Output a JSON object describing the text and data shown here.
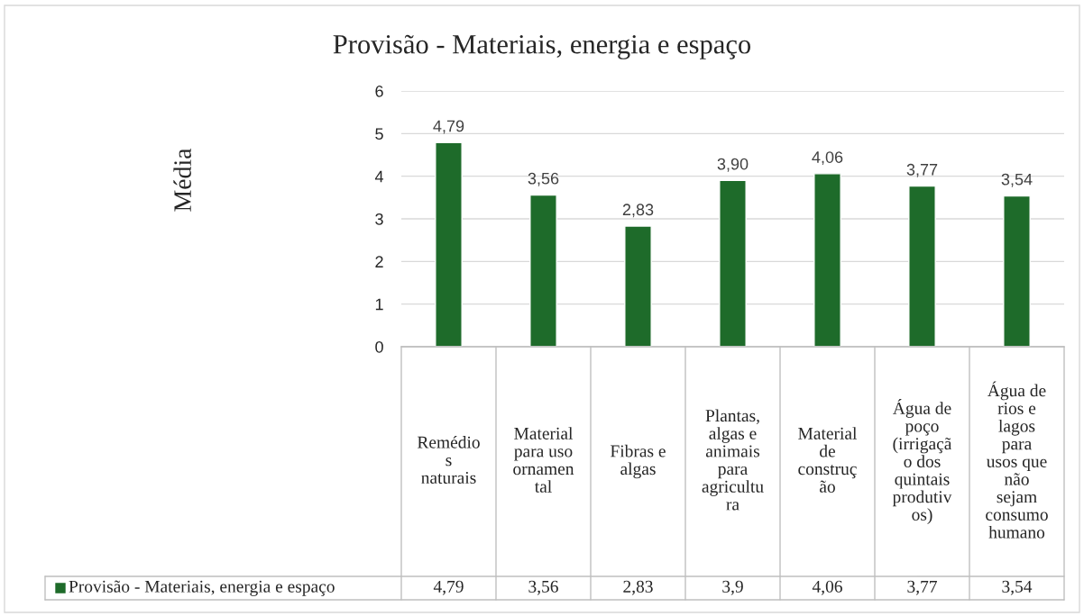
{
  "chart_data": {
    "type": "bar",
    "title": "Provisão - Materiais, energia e espaço",
    "annotations": [
      "Média",
      "4,79",
      "3,56",
      "2,83",
      "3,9",
      "4,06",
      "3,77",
      "3,54"
    ],
    "categories": [
      "Remédio\ns\nnaturais",
      "Material\npara uso\nornamen\ntal",
      "Fibras e\nalgas",
      "Plantas,\nalgas e\nanimais\npara\nagricultu\nra",
      "Material\nde\nconstruç\não",
      "Água de\npoço\n(irrigaçã\no dos\nquintais\nprodutiv\nos)",
      "Água de\nrios e\nlagos\npara\nusos que\nnão\nsejam\nconsumo\nhumano"
    ],
    "series": [
      {
        "name": "Provisão - Materiais, energia e espaço",
        "color": "#1e6b2a",
        "values": [
          4.79,
          3.56,
          2.83,
          3.9,
          4.06,
          3.77,
          3.54
        ],
        "value_labels": [
          "4,79",
          "3,56",
          "2,83",
          "3,90",
          "4,06",
          "3,77",
          "3,54"
        ]
      }
    ],
    "ylim": [
      0,
      6
    ],
    "yticks": [
      0,
      1,
      2,
      3,
      4,
      5,
      6
    ],
    "grid": "y",
    "legend": "bottom"
  }
}
